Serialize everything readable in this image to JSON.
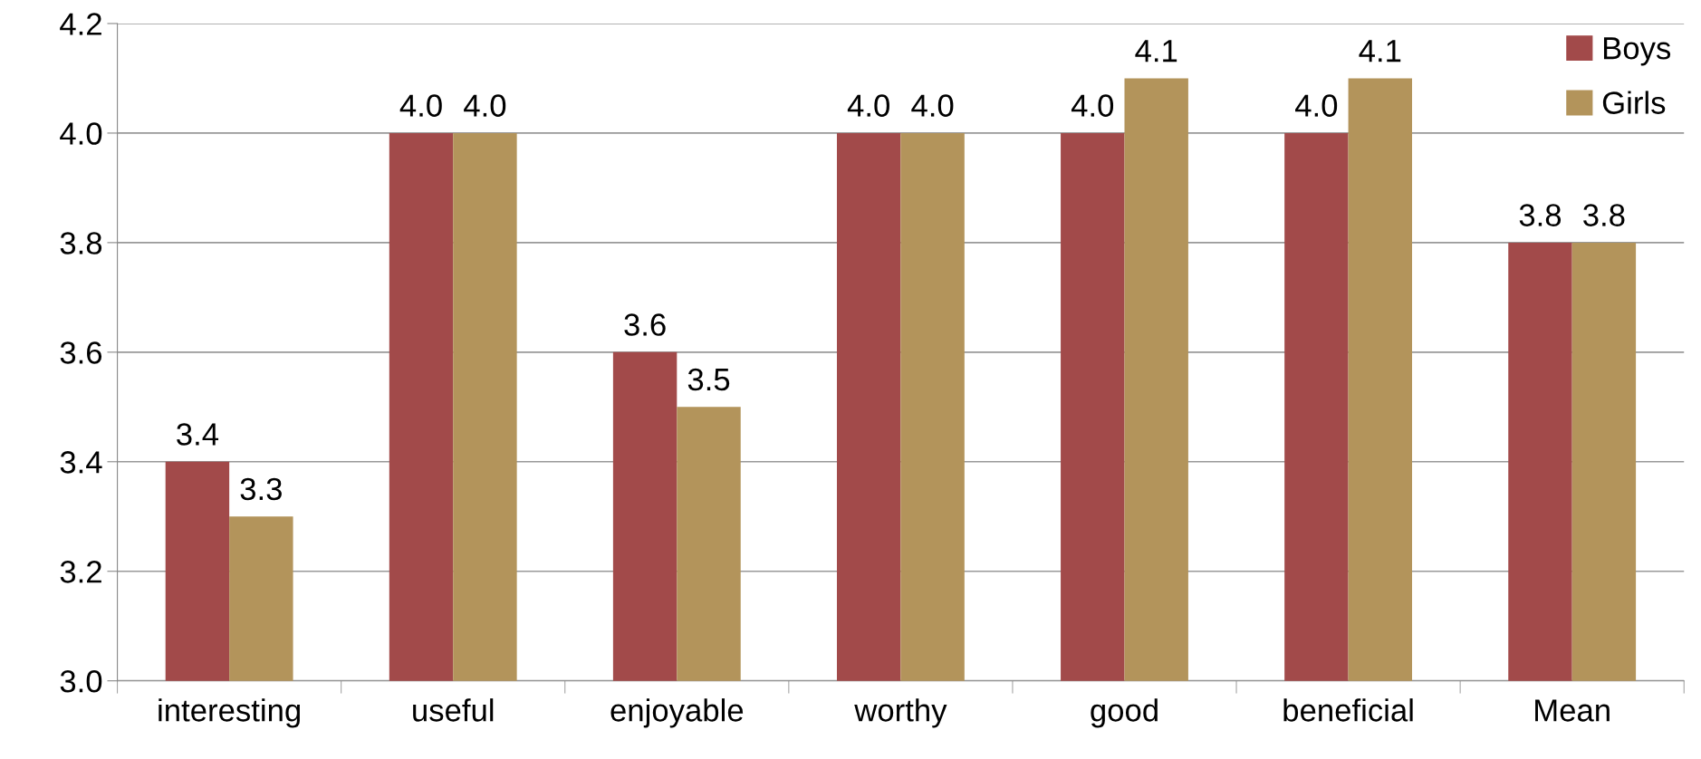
{
  "chart_data": {
    "type": "bar",
    "categories": [
      "interesting",
      "useful",
      "enjoyable",
      "worthy",
      "good",
      "beneficial",
      "Mean"
    ],
    "series": [
      {
        "name": "Boys",
        "color": "#a24a4a",
        "values": [
          3.4,
          4.0,
          3.6,
          4.0,
          4.0,
          4.0,
          3.8
        ],
        "value_labels": [
          "3.4",
          "4.0",
          "3.6",
          "4.0",
          "4.0",
          "4.0",
          "3.8"
        ]
      },
      {
        "name": "Girls",
        "color": "#b3945b",
        "values": [
          3.3,
          4.0,
          3.5,
          4.0,
          4.1,
          4.1,
          3.8
        ],
        "value_labels": [
          "3.3",
          "4.0",
          "3.5",
          "4.0",
          "4.1",
          "4.1",
          "3.8"
        ]
      }
    ],
    "ylim": [
      3.0,
      4.2
    ],
    "yticks": [
      {
        "value": 3.0,
        "label": "3.0"
      },
      {
        "value": 3.2,
        "label": "3.2"
      },
      {
        "value": 3.4,
        "label": "3.4"
      },
      {
        "value": 3.6,
        "label": "3.6"
      },
      {
        "value": 3.8,
        "label": "3.8"
      },
      {
        "value": 4.0,
        "label": "4.0"
      },
      {
        "value": 4.2,
        "label": "4.2"
      }
    ],
    "grid": "y",
    "legend": "top right"
  }
}
